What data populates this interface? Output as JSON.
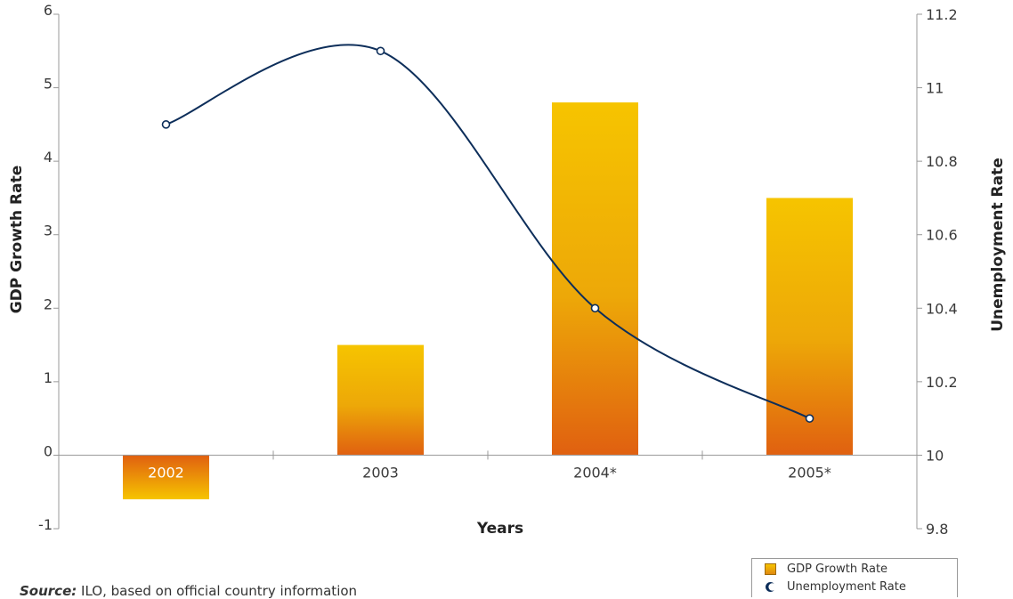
{
  "chart_data": {
    "type": "bar+line",
    "categories": [
      "2002",
      "2003",
      "2004*",
      "2005*"
    ],
    "series": [
      {
        "name": "GDP Growth Rate",
        "type": "bar",
        "axis": "left",
        "values": [
          -0.6,
          1.5,
          4.8,
          3.5
        ]
      },
      {
        "name": "Unemployment Rate",
        "type": "line",
        "axis": "right",
        "values": [
          10.9,
          11.1,
          10.4,
          10.1
        ]
      }
    ],
    "xlabel": "Years",
    "ylabel": "GDP Growth Rate",
    "y2label": "Unemployment Rate",
    "ylim": [
      -1,
      6
    ],
    "y2lim": [
      9.8,
      11.2
    ],
    "yticks": [
      "-1",
      "0",
      "1",
      "2",
      "3",
      "4",
      "5",
      "6"
    ],
    "y2ticks": [
      "9.8",
      "10",
      "10.2",
      "10.4",
      "10.6",
      "10.8",
      "11",
      "11.2"
    ],
    "grid": false,
    "legend_position": "bottom-right",
    "colors": {
      "bar_top": "#f6c400",
      "bar_bottom": "#e06010",
      "line": "#0d2e5a",
      "axis": "#999999"
    }
  },
  "legend": {
    "items": [
      "GDP Growth Rate",
      "Unemployment Rate"
    ]
  },
  "source": {
    "label": "Source:",
    "text": "ILO, based on official country information"
  }
}
